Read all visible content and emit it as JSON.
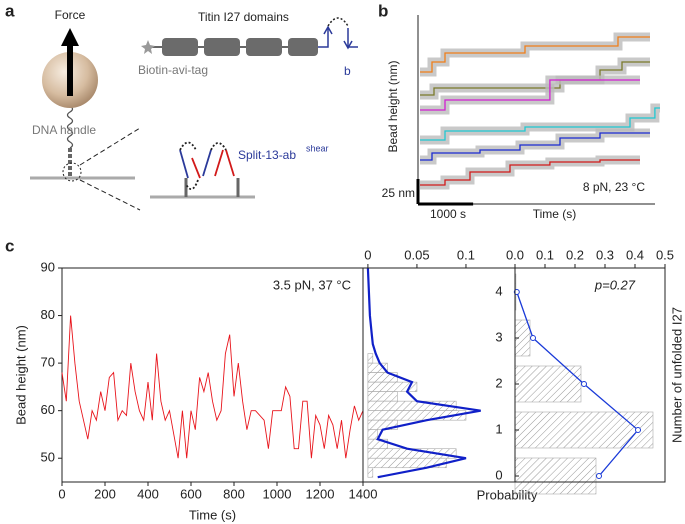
{
  "panel_labels": [
    "a",
    "b",
    "c"
  ],
  "diagram": {
    "force": "Force",
    "titin": "Titin I27 domains",
    "hairpin_label": "b",
    "biotin": "Biotin-avi-tag",
    "dna": "DNA handle",
    "split": "Split-13-ab",
    "split_sup": "shear"
  },
  "chart_data": [
    {
      "type": "line",
      "x_label": "Time (s)",
      "y_label": "Bead height (nm)",
      "annotation": "8 pN, 23 °C",
      "xlim": [
        0,
        4300
      ],
      "ylim": [
        0,
        183
      ],
      "scale_bars": [
        {
          "value": 1000,
          "label": "1000 s"
        },
        {
          "value": 25,
          "label": "25 nm"
        }
      ],
      "series": [
        {
          "color": "#f07f1a",
          "x": [
            36,
            254,
            254,
            490,
            490,
            1941,
            1941,
            3628,
            3628,
            4209
          ],
          "values": [
            126,
            126,
            136,
            136,
            145,
            145,
            152,
            152,
            161,
            161
          ]
        },
        {
          "color": "#7a7a2a",
          "x": [
            36,
            290,
            290,
            2577,
            2577,
            3302,
            3302,
            3701,
            3701,
            4209
          ],
          "values": [
            103,
            103,
            110,
            110,
            118,
            118,
            128,
            128,
            136,
            136
          ]
        },
        {
          "color": "#d21fd2",
          "x": [
            36,
            490,
            490,
            2394,
            2394,
            4027
          ],
          "values": [
            88,
            88,
            98,
            98,
            118,
            118
          ]
        },
        {
          "color": "#1fc8d2",
          "x": [
            36,
            490,
            490,
            1941,
            1941,
            3846,
            3846,
            4299,
            4299,
            4390
          ],
          "values": [
            58,
            58,
            67,
            67,
            71,
            71,
            80,
            80,
            90,
            90
          ]
        },
        {
          "color": "#1a2ad2",
          "x": [
            36,
            254,
            254,
            1125,
            1125,
            1850,
            1850,
            2576,
            2576,
            3302,
            3302,
            4209
          ],
          "values": [
            38,
            38,
            45,
            45,
            48,
            48,
            53,
            53,
            60,
            60,
            65,
            65
          ]
        },
        {
          "color": "#d21a1a",
          "x": [
            36,
            490,
            490,
            943,
            943,
            1669,
            1669,
            2394,
            2394,
            3302,
            3302,
            4027
          ],
          "values": [
            13,
            13,
            18,
            18,
            26,
            26,
            33,
            33,
            36,
            36,
            38,
            38
          ]
        }
      ]
    },
    {
      "type": "line",
      "x_label": "Time (s)",
      "y_label": "Bead height (nm)",
      "annotation": "3.5 pN, 37 °C",
      "color": "#e8141b",
      "xlim": [
        0,
        1400
      ],
      "xticks": [
        0,
        200,
        400,
        600,
        800,
        1000,
        1200,
        1400
      ],
      "ylim": [
        45,
        90
      ],
      "yticks": [
        50,
        60,
        70,
        80,
        90
      ],
      "x": [
        0,
        20,
        40,
        60,
        80,
        100,
        120,
        140,
        160,
        180,
        200,
        220,
        240,
        260,
        280,
        300,
        320,
        340,
        360,
        380,
        400,
        420,
        440,
        460,
        480,
        500,
        520,
        540,
        560,
        580,
        600,
        620,
        640,
        660,
        680,
        700,
        720,
        740,
        760,
        780,
        800,
        820,
        840,
        860,
        880,
        900,
        920,
        940,
        960,
        980,
        1000,
        1020,
        1040,
        1060,
        1080,
        1100,
        1120,
        1140,
        1160,
        1180,
        1200,
        1220,
        1240,
        1260,
        1280,
        1300,
        1320,
        1340,
        1360,
        1380,
        1400
      ],
      "values": [
        68,
        62,
        80,
        70,
        62,
        58,
        54,
        60,
        58,
        64,
        60,
        67,
        68,
        58,
        60,
        59,
        70,
        64,
        60,
        58,
        66,
        58,
        72,
        62,
        58,
        60,
        55,
        50,
        60,
        50,
        60,
        56,
        67,
        64,
        68,
        62,
        58,
        60,
        72,
        76,
        63,
        70,
        62,
        56,
        60,
        60,
        59,
        58,
        52,
        60,
        60,
        60,
        65,
        63,
        52,
        52,
        62,
        62,
        50,
        59,
        57,
        52,
        59,
        57,
        52,
        58,
        50,
        56,
        61,
        58,
        60
      ]
    },
    {
      "type": "histogram",
      "x_label": "Probability",
      "xlim": [
        -0.005,
        0.15
      ],
      "xticks": [
        0,
        0.05,
        0.1
      ],
      "ylim": [
        45,
        90
      ],
      "bins": [
        46,
        48,
        50,
        52,
        54,
        56,
        58,
        60,
        62,
        64,
        66,
        68,
        70,
        72
      ],
      "values": [
        0.005,
        0.08,
        0.09,
        0.02,
        0.01,
        0.03,
        0.1,
        0.09,
        0.03,
        0.05,
        0.03,
        0.02,
        0.005
      ],
      "fit": {
        "color": "#1020c8",
        "y": [
          46,
          48,
          50,
          52,
          54,
          56,
          58,
          60,
          62,
          64,
          66,
          68,
          70,
          72,
          74,
          76,
          80,
          85,
          90
        ],
        "values": [
          0.01,
          0.06,
          0.1,
          0.04,
          0.01,
          0.015,
          0.06,
          0.115,
          0.05,
          0.04,
          0.045,
          0.02,
          0.012,
          0.008,
          0.005,
          0.004,
          0.002,
          0.001,
          0
        ]
      }
    },
    {
      "type": "bar",
      "y_label": "Number of unfolded I27",
      "annotation": "p=0.27",
      "xlim": [
        0,
        0.5
      ],
      "xticks": [
        {
          "value": 0,
          "label": "0.0"
        },
        0.1,
        0.2,
        0.3,
        0.4,
        0.5
      ],
      "categories": [
        "0",
        "1",
        "2",
        "3",
        "4"
      ],
      "values": [
        0.27,
        0.46,
        0.22,
        0.05,
        0.003
      ],
      "fit": {
        "color": "#1a3ad8",
        "values": [
          0.28,
          0.41,
          0.23,
          0.06,
          0.006
        ]
      }
    }
  ]
}
